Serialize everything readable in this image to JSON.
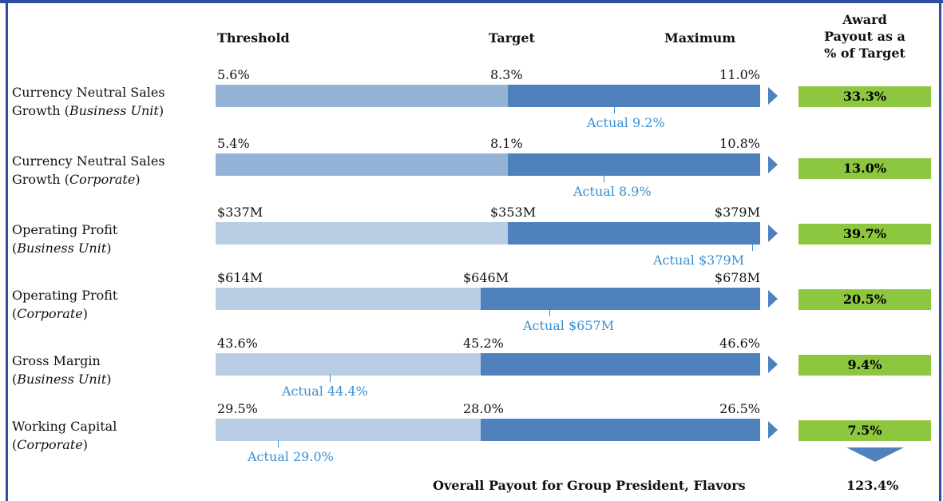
{
  "header": {
    "threshold": "Threshold",
    "target": "Target",
    "maximum": "Maximum",
    "payout": [
      "Award",
      "Payout as a",
      "% of Target"
    ]
  },
  "rows": [
    {
      "label": [
        "Currency Neutral Sales",
        "Growth (",
        "Business Unit",
        ")"
      ],
      "threshold": "5.6%",
      "target": "8.3%",
      "maximum": "11.0%",
      "actual": "Actual 9.2%",
      "payout": "33.3%"
    },
    {
      "label": [
        "Currency Neutral Sales",
        "Growth (",
        "Corporate",
        ")"
      ],
      "threshold": "5.4%",
      "target": "8.1%",
      "maximum": "10.8%",
      "actual": "Actual 8.9%",
      "payout": "13.0%"
    },
    {
      "label": [
        "Operating Profit",
        "(",
        "Business Unit",
        ")"
      ],
      "threshold": "$337M",
      "target": "$353M",
      "maximum": "$379M",
      "actual": "Actual $379M",
      "payout": "39.7%"
    },
    {
      "label": [
        "Operating Profit",
        "(",
        "Corporate",
        ")"
      ],
      "threshold": "$614M",
      "target": "$646M",
      "maximum": "$678M",
      "actual": "Actual $657M",
      "payout": "20.5%"
    },
    {
      "label": [
        "Gross Margin",
        "(",
        "Business Unit",
        ")"
      ],
      "threshold": "43.6%",
      "target": "45.2%",
      "maximum": "46.6%",
      "actual": "Actual 44.4%",
      "payout": "9.4%"
    },
    {
      "label": [
        "Working Capital",
        "(",
        "Corporate",
        ")"
      ],
      "threshold": "29.5%",
      "target": "28.0%",
      "maximum": "26.5%",
      "actual": "Actual 29.0%",
      "payout": "7.5%"
    }
  ],
  "footer": {
    "label": "Overall Payout for Group President, Flavors",
    "value": "123.4%"
  }
}
